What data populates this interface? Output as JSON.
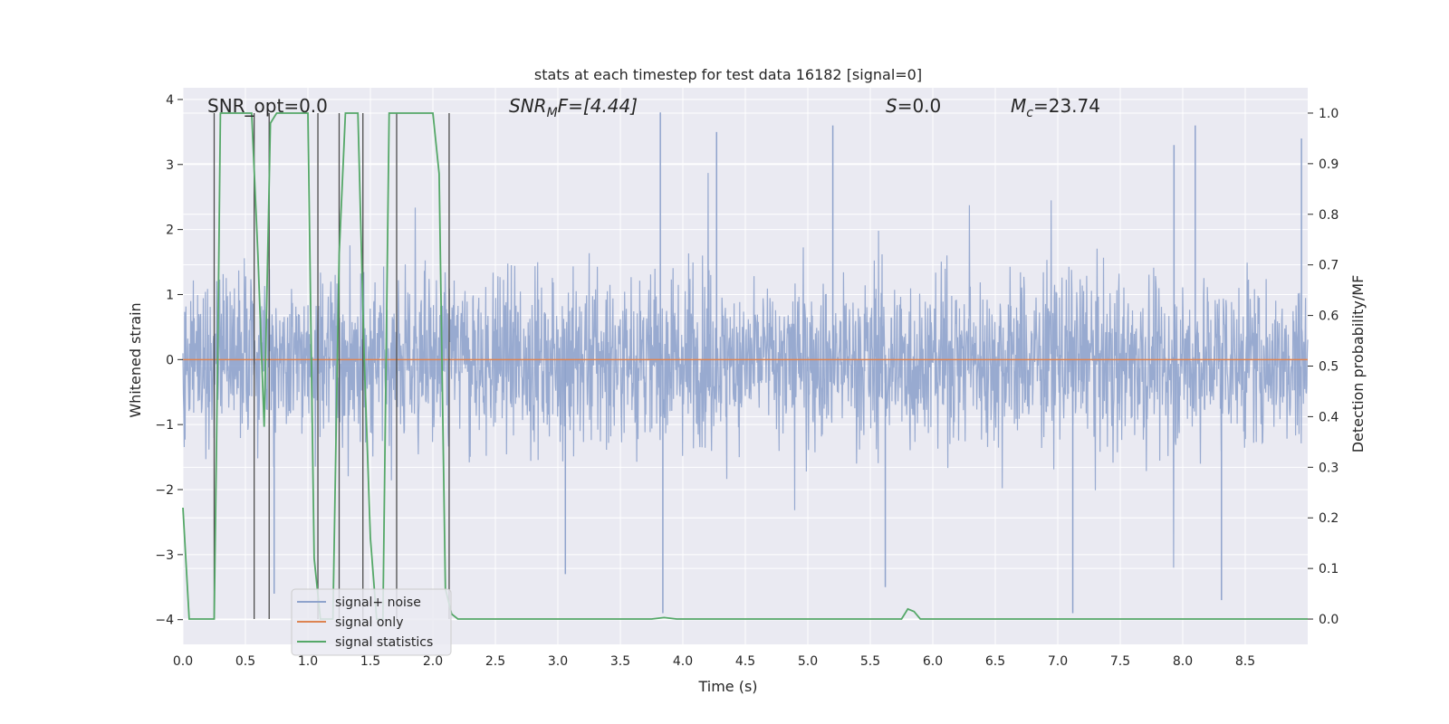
{
  "chart_data": {
    "type": "line",
    "title": "stats at each timestep for test data 16182 [signal=0]",
    "xlabel": "Time (s)",
    "ylabel": "Whitened strain",
    "ylabel_right": "Detection probability/MF",
    "xlim": [
      0.0,
      9.0
    ],
    "ylim": [
      -4.38,
      4.18
    ],
    "ylim_right": [
      -0.05,
      1.05
    ],
    "x_ticks": [
      "0.0",
      "0.5",
      "1.0",
      "1.5",
      "2.0",
      "2.5",
      "3.0",
      "3.5",
      "4.0",
      "4.5",
      "5.0",
      "5.5",
      "6.0",
      "6.5",
      "7.0",
      "7.5",
      "8.0",
      "8.5"
    ],
    "y_ticks": [
      "4",
      "3",
      "2",
      "1",
      "0",
      "−1",
      "−2",
      "−3",
      "−4"
    ],
    "y_right_ticks": [
      "1.0",
      "0.9",
      "0.8",
      "0.7",
      "0.6",
      "0.5",
      "0.4",
      "0.3",
      "0.2",
      "0.1",
      "0.0"
    ],
    "grid": true,
    "legend_position": "lower-left",
    "annotations": {
      "snr_opt": "SNR_opt=0.0",
      "snr_mf_main": "SNR",
      "snr_mf_sub": "M",
      "snr_mf_rest": "F=[4.44]",
      "s_main": "S",
      "s_rest": "=0.0",
      "mc_main": "M",
      "mc_sub": "c",
      "mc_rest": "=23.74"
    },
    "series": [
      {
        "name": "signal+ noise",
        "color": "#8fa3cc",
        "description_level": "noise band roughly between -2.3 and 2.2, with spikes up to about 3.8 and down to about -3.9",
        "peaks_high": [
          [
            3.82,
            3.8
          ],
          [
            4.27,
            3.5
          ],
          [
            5.2,
            3.6
          ],
          [
            8.1,
            3.6
          ],
          [
            7.93,
            3.3
          ],
          [
            8.95,
            3.4
          ]
        ],
        "peaks_low": [
          [
            3.84,
            -3.9
          ],
          [
            7.12,
            -3.9
          ],
          [
            8.31,
            -3.7
          ],
          [
            5.62,
            -3.5
          ],
          [
            3.06,
            -3.3
          ],
          [
            0.73,
            -3.6
          ]
        ]
      },
      {
        "name": "signal only",
        "color": "#dd8452",
        "x": [
          0.0,
          9.0
        ],
        "y": [
          0.0,
          0.0
        ]
      },
      {
        "name": "signal statistics",
        "color": "#55a868",
        "axis": "right",
        "x": [
          0.0,
          0.05,
          0.1,
          0.15,
          0.2,
          0.25,
          0.28,
          0.3,
          0.35,
          0.4,
          0.45,
          0.5,
          0.55,
          0.6,
          0.65,
          0.7,
          0.75,
          0.8,
          0.85,
          0.9,
          0.95,
          1.0,
          1.05,
          1.1,
          1.15,
          1.2,
          1.25,
          1.3,
          1.35,
          1.4,
          1.45,
          1.5,
          1.55,
          1.6,
          1.65,
          1.7,
          1.75,
          1.8,
          1.85,
          1.9,
          1.95,
          2.0,
          2.05,
          2.1,
          2.15,
          2.2,
          2.25,
          2.3,
          2.4,
          2.5,
          3.0,
          3.5,
          3.75,
          3.85,
          3.95,
          4.5,
          5.0,
          5.5,
          5.75,
          5.8,
          5.85,
          5.9,
          6.0,
          6.5,
          7.0,
          7.5,
          8.0,
          8.5,
          9.0
        ],
        "y": [
          0.22,
          0.0,
          0.0,
          0.0,
          0.0,
          0.0,
          0.55,
          1.0,
          1.0,
          1.0,
          1.0,
          1.0,
          1.0,
          0.72,
          0.38,
          0.98,
          1.0,
          1.0,
          1.0,
          1.0,
          1.0,
          1.0,
          0.12,
          0.0,
          0.0,
          0.0,
          0.72,
          1.0,
          1.0,
          1.0,
          0.52,
          0.16,
          0.0,
          0.0,
          1.0,
          1.0,
          1.0,
          1.0,
          1.0,
          1.0,
          1.0,
          1.0,
          0.88,
          0.06,
          0.01,
          0.0,
          0.0,
          0.0,
          0.0,
          0.0,
          0.0,
          0.0,
          0.0,
          0.003,
          0.0,
          0.0,
          0.0,
          0.0,
          0.0,
          0.02,
          0.015,
          0.0,
          0.0,
          0.0,
          0.0,
          0.0,
          0.0,
          0.0,
          0.0
        ]
      },
      {
        "name": "markers",
        "color": "#4d4d4d",
        "x": [
          0.25,
          0.57,
          0.69,
          1.08,
          1.25,
          1.44,
          1.71,
          2.13
        ]
      }
    ]
  }
}
